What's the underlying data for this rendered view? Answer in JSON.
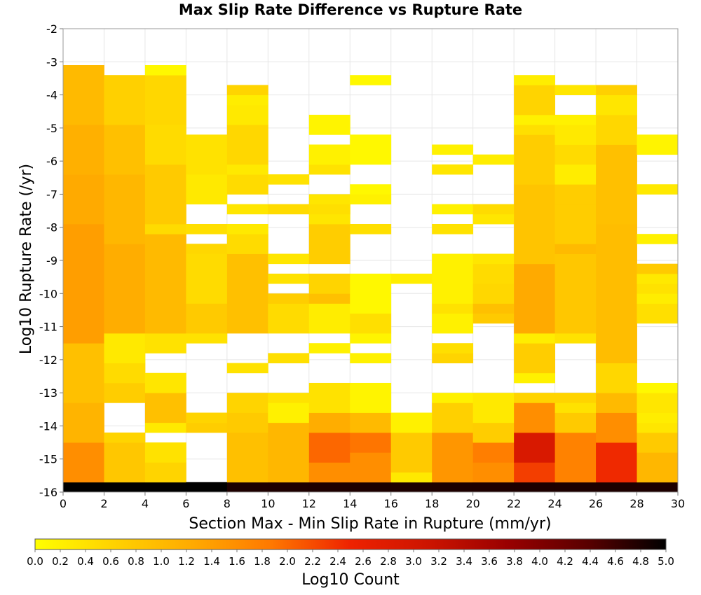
{
  "chart_data": {
    "type": "heatmap",
    "title": "Max Slip Rate Difference vs Rupture Rate",
    "xlabel": "Section Max - Min Slip Rate in Rupture (mm/yr)",
    "ylabel": "Log10 Rupture Rate (/yr)",
    "colorbar_label": "Log10 Count",
    "xlim": [
      0,
      30
    ],
    "ylim": [
      -16,
      -2
    ],
    "x_ticks": [
      "0",
      "2",
      "4",
      "6",
      "8",
      "10",
      "12",
      "14",
      "16",
      "18",
      "20",
      "22",
      "24",
      "26",
      "28",
      "30"
    ],
    "y_ticks": [
      "-2",
      "-3",
      "-4",
      "-5",
      "-6",
      "-7",
      "-8",
      "-9",
      "-10",
      "-11",
      "-12",
      "-13",
      "-14",
      "-15",
      "-16"
    ],
    "colorbar_range": [
      0,
      5
    ],
    "colorbar_ticks": [
      "0.0",
      "0.2",
      "0.4",
      "0.6",
      "0.8",
      "1.0",
      "1.2",
      "1.4",
      "1.6",
      "1.8",
      "2.0",
      "2.2",
      "2.4",
      "2.6",
      "2.8",
      "3.0",
      "3.2",
      "3.4",
      "3.6",
      "3.8",
      "4.0",
      "4.2",
      "4.4",
      "4.6",
      "4.8",
      "5.0"
    ],
    "colorscale": [
      "#ffff00",
      "#ffd200",
      "#ffaa00",
      "#ff7800",
      "#ee2200",
      "#cc1400",
      "#990000",
      "#5a0000",
      "#000000"
    ],
    "x_bin_width": 2,
    "y_bin_height": 0.3,
    "y_bin_start": -16,
    "grid": true,
    "legend": "bottom",
    "columns": [
      {
        "x0": 0,
        "runs": [
          {
            "y0": -16.0,
            "n": 1,
            "v": 5.0
          },
          {
            "y0": -15.7,
            "n": 4,
            "v": 1.6
          },
          {
            "y0": -14.5,
            "n": 4,
            "v": 1.1
          },
          {
            "y0": -13.3,
            "n": 6,
            "v": 0.9
          },
          {
            "y0": -11.5,
            "n": 12,
            "v": 1.4
          },
          {
            "y0": -7.9,
            "n": 5,
            "v": 1.25
          },
          {
            "y0": -6.4,
            "n": 5,
            "v": 1.15
          },
          {
            "y0": -4.9,
            "n": 6,
            "v": 1.0
          }
        ]
      },
      {
        "x0": 2,
        "runs": [
          {
            "y0": -16.0,
            "n": 1,
            "v": 5.0
          },
          {
            "y0": -15.7,
            "n": 4,
            "v": 0.8
          },
          {
            "y0": -14.5,
            "n": 1,
            "v": 0.6
          },
          {
            "y0": -13.3,
            "n": 2,
            "v": 0.7
          },
          {
            "y0": -12.7,
            "n": 2,
            "v": 0.5
          },
          {
            "y0": -12.1,
            "n": 3,
            "v": 0.3
          },
          {
            "y0": -11.2,
            "n": 9,
            "v": 1.2
          },
          {
            "y0": -8.5,
            "n": 7,
            "v": 1.05
          },
          {
            "y0": -6.4,
            "n": 5,
            "v": 0.9
          },
          {
            "y0": -4.9,
            "n": 5,
            "v": 0.65
          }
        ]
      },
      {
        "x0": 4,
        "runs": [
          {
            "y0": -16.0,
            "n": 1,
            "v": 5.0
          },
          {
            "y0": -15.7,
            "n": 2,
            "v": 0.6
          },
          {
            "y0": -15.1,
            "n": 2,
            "v": 0.4
          },
          {
            "y0": -14.2,
            "n": 1,
            "v": 0.3
          },
          {
            "y0": -13.9,
            "n": 3,
            "v": 0.9
          },
          {
            "y0": -13.0,
            "n": 2,
            "v": 0.35
          },
          {
            "y0": -11.8,
            "n": 2,
            "v": 0.4
          },
          {
            "y0": -11.2,
            "n": 10,
            "v": 1.0
          },
          {
            "y0": -8.2,
            "n": 1,
            "v": 0.5
          },
          {
            "y0": -7.9,
            "n": 6,
            "v": 0.75
          },
          {
            "y0": -6.1,
            "n": 4,
            "v": 0.5
          },
          {
            "y0": -4.9,
            "n": 5,
            "v": 0.55
          },
          {
            "y0": -3.4,
            "n": 1,
            "v": 0.1
          }
        ]
      },
      {
        "x0": 6,
        "runs": [
          {
            "y0": -16.0,
            "n": 1,
            "v": 5.0
          },
          {
            "y0": -14.2,
            "n": 1,
            "v": 0.7
          },
          {
            "y0": -13.9,
            "n": 1,
            "v": 0.6
          },
          {
            "y0": -11.5,
            "n": 1,
            "v": 0.4
          },
          {
            "y0": -11.2,
            "n": 3,
            "v": 0.75
          },
          {
            "y0": -10.3,
            "n": 6,
            "v": 0.5
          },
          {
            "y0": -8.8,
            "n": 1,
            "v": 0.55
          },
          {
            "y0": -8.2,
            "n": 1,
            "v": 0.45
          },
          {
            "y0": -7.3,
            "n": 4,
            "v": 0.3
          },
          {
            "y0": -6.4,
            "n": 4,
            "v": 0.4
          }
        ]
      },
      {
        "x0": 8,
        "runs": [
          {
            "y0": -16.0,
            "n": 1,
            "v": 4.8
          },
          {
            "y0": -15.7,
            "n": 5,
            "v": 0.9
          },
          {
            "y0": -14.2,
            "n": 2,
            "v": 0.75
          },
          {
            "y0": -13.6,
            "n": 2,
            "v": 0.6
          },
          {
            "y0": -12.4,
            "n": 1,
            "v": 0.4
          },
          {
            "y0": -11.2,
            "n": 8,
            "v": 0.9
          },
          {
            "y0": -8.8,
            "n": 2,
            "v": 0.5
          },
          {
            "y0": -8.2,
            "n": 1,
            "v": 0.3
          },
          {
            "y0": -7.6,
            "n": 1,
            "v": 0.35
          },
          {
            "y0": -7.0,
            "n": 2,
            "v": 0.5
          },
          {
            "y0": -6.4,
            "n": 1,
            "v": 0.3
          },
          {
            "y0": -6.1,
            "n": 4,
            "v": 0.55
          },
          {
            "y0": -4.9,
            "n": 2,
            "v": 0.3
          },
          {
            "y0": -4.3,
            "n": 1,
            "v": 0.25
          },
          {
            "y0": -4.0,
            "n": 1,
            "v": 0.6
          }
        ]
      },
      {
        "x0": 10,
        "runs": [
          {
            "y0": -16.0,
            "n": 1,
            "v": 4.8
          },
          {
            "y0": -15.7,
            "n": 6,
            "v": 1.05
          },
          {
            "y0": -13.9,
            "n": 2,
            "v": 0.2
          },
          {
            "y0": -13.3,
            "n": 1,
            "v": 0.4
          },
          {
            "y0": -12.1,
            "n": 1,
            "v": 0.45
          },
          {
            "y0": -11.2,
            "n": 3,
            "v": 0.5
          },
          {
            "y0": -10.3,
            "n": 1,
            "v": 0.7
          },
          {
            "y0": -9.7,
            "n": 1,
            "v": 0.4
          },
          {
            "y0": -9.1,
            "n": 1,
            "v": 0.35
          },
          {
            "y0": -7.6,
            "n": 1,
            "v": 0.5
          },
          {
            "y0": -6.7,
            "n": 1,
            "v": 0.4
          }
        ]
      },
      {
        "x0": 12,
        "runs": [
          {
            "y0": -16.0,
            "n": 1,
            "v": 4.8
          },
          {
            "y0": -15.7,
            "n": 2,
            "v": 1.6
          },
          {
            "y0": -15.1,
            "n": 3,
            "v": 2.0
          },
          {
            "y0": -14.2,
            "n": 2,
            "v": 1.2
          },
          {
            "y0": -13.6,
            "n": 3,
            "v": 0.4
          },
          {
            "y0": -11.8,
            "n": 1,
            "v": 0.2
          },
          {
            "y0": -11.2,
            "n": 3,
            "v": 0.25
          },
          {
            "y0": -10.3,
            "n": 1,
            "v": 0.9
          },
          {
            "y0": -10.0,
            "n": 2,
            "v": 0.6
          },
          {
            "y0": -9.1,
            "n": 4,
            "v": 0.7
          },
          {
            "y0": -7.9,
            "n": 3,
            "v": 0.35
          },
          {
            "y0": -7.6,
            "n": 1,
            "v": 0.45
          },
          {
            "y0": -6.4,
            "n": 1,
            "v": 0.4
          },
          {
            "y0": -6.1,
            "n": 2,
            "v": 0.2
          },
          {
            "y0": -5.2,
            "n": 2,
            "v": 0.15
          }
        ]
      },
      {
        "x0": 14,
        "runs": [
          {
            "y0": -16.0,
            "n": 1,
            "v": 4.8
          },
          {
            "y0": -15.7,
            "n": 3,
            "v": 1.6
          },
          {
            "y0": -14.8,
            "n": 2,
            "v": 1.9
          },
          {
            "y0": -14.2,
            "n": 2,
            "v": 1.0
          },
          {
            "y0": -13.6,
            "n": 3,
            "v": 0.15
          },
          {
            "y0": -12.1,
            "n": 1,
            "v": 0.2
          },
          {
            "y0": -11.5,
            "n": 1,
            "v": 0.15
          },
          {
            "y0": -11.2,
            "n": 2,
            "v": 0.45
          },
          {
            "y0": -10.6,
            "n": 4,
            "v": 0.1
          },
          {
            "y0": -8.2,
            "n": 1,
            "v": 0.45
          },
          {
            "y0": -7.3,
            "n": 1,
            "v": 0.2
          },
          {
            "y0": -7.0,
            "n": 1,
            "v": 0.1
          },
          {
            "y0": -6.1,
            "n": 3,
            "v": 0.1
          },
          {
            "y0": -3.7,
            "n": 1,
            "v": 0.1
          }
        ]
      },
      {
        "x0": 16,
        "runs": [
          {
            "y0": -16.0,
            "n": 1,
            "v": 4.8
          },
          {
            "y0": -15.7,
            "n": 1,
            "v": 0.3
          },
          {
            "y0": -15.4,
            "n": 4,
            "v": 0.75
          },
          {
            "y0": -14.2,
            "n": 2,
            "v": 0.2
          },
          {
            "y0": -9.7,
            "n": 1,
            "v": 0.25
          }
        ]
      },
      {
        "x0": 18,
        "runs": [
          {
            "y0": -16.0,
            "n": 1,
            "v": 4.8
          },
          {
            "y0": -15.7,
            "n": 5,
            "v": 1.5
          },
          {
            "y0": -14.2,
            "n": 3,
            "v": 0.65
          },
          {
            "y0": -13.3,
            "n": 1,
            "v": 0.2
          },
          {
            "y0": -12.1,
            "n": 1,
            "v": 0.6
          },
          {
            "y0": -11.8,
            "n": 1,
            "v": 0.45
          },
          {
            "y0": -11.2,
            "n": 2,
            "v": 0.2
          },
          {
            "y0": -10.6,
            "n": 1,
            "v": 0.4
          },
          {
            "y0": -10.3,
            "n": 5,
            "v": 0.2
          },
          {
            "y0": -8.2,
            "n": 1,
            "v": 0.4
          },
          {
            "y0": -7.6,
            "n": 1,
            "v": 0.2
          },
          {
            "y0": -6.4,
            "n": 1,
            "v": 0.35
          },
          {
            "y0": -5.8,
            "n": 1,
            "v": 0.2
          }
        ]
      },
      {
        "x0": 20,
        "runs": [
          {
            "y0": -16.0,
            "n": 1,
            "v": 4.8
          },
          {
            "y0": -15.7,
            "n": 2,
            "v": 1.6
          },
          {
            "y0": -15.1,
            "n": 2,
            "v": 1.8
          },
          {
            "y0": -14.5,
            "n": 2,
            "v": 0.7
          },
          {
            "y0": -13.9,
            "n": 3,
            "v": 0.3
          },
          {
            "y0": -10.9,
            "n": 1,
            "v": 0.75
          },
          {
            "y0": -10.6,
            "n": 1,
            "v": 0.9
          },
          {
            "y0": -10.3,
            "n": 2,
            "v": 0.55
          },
          {
            "y0": -9.7,
            "n": 2,
            "v": 0.5
          },
          {
            "y0": -9.1,
            "n": 1,
            "v": 0.35
          },
          {
            "y0": -7.9,
            "n": 1,
            "v": 0.35
          },
          {
            "y0": -7.6,
            "n": 1,
            "v": 0.5
          },
          {
            "y0": -6.1,
            "n": 1,
            "v": 0.25
          }
        ]
      },
      {
        "x0": 22,
        "runs": [
          {
            "y0": -16.0,
            "n": 1,
            "v": 4.8
          },
          {
            "y0": -15.7,
            "n": 2,
            "v": 2.3
          },
          {
            "y0": -15.1,
            "n": 3,
            "v": 2.9
          },
          {
            "y0": -14.2,
            "n": 3,
            "v": 1.6
          },
          {
            "y0": -13.3,
            "n": 1,
            "v": 0.6
          },
          {
            "y0": -12.7,
            "n": 1,
            "v": 0.2
          },
          {
            "y0": -12.4,
            "n": 3,
            "v": 0.7
          },
          {
            "y0": -11.5,
            "n": 1,
            "v": 0.25
          },
          {
            "y0": -11.2,
            "n": 7,
            "v": 1.25
          },
          {
            "y0": -9.1,
            "n": 8,
            "v": 0.85
          },
          {
            "y0": -6.7,
            "n": 5,
            "v": 0.7
          },
          {
            "y0": -5.2,
            "n": 1,
            "v": 0.45
          },
          {
            "y0": -4.9,
            "n": 1,
            "v": 0.2
          },
          {
            "y0": -4.6,
            "n": 3,
            "v": 0.6
          },
          {
            "y0": -3.7,
            "n": 1,
            "v": 0.25
          }
        ]
      },
      {
        "x0": 24,
        "runs": [
          {
            "y0": -16.0,
            "n": 1,
            "v": 4.8
          },
          {
            "y0": -15.7,
            "n": 5,
            "v": 1.75
          },
          {
            "y0": -14.2,
            "n": 2,
            "v": 0.75
          },
          {
            "y0": -13.6,
            "n": 1,
            "v": 0.4
          },
          {
            "y0": -13.3,
            "n": 1,
            "v": 0.6
          },
          {
            "y0": -11.5,
            "n": 1,
            "v": 0.4
          },
          {
            "y0": -11.2,
            "n": 8,
            "v": 0.8
          },
          {
            "y0": -8.8,
            "n": 1,
            "v": 1.0
          },
          {
            "y0": -8.5,
            "n": 4,
            "v": 0.7
          },
          {
            "y0": -7.3,
            "n": 2,
            "v": 0.7
          },
          {
            "y0": -6.7,
            "n": 2,
            "v": 0.25
          },
          {
            "y0": -6.1,
            "n": 2,
            "v": 0.5
          },
          {
            "y0": -5.5,
            "n": 2,
            "v": 0.3
          },
          {
            "y0": -4.9,
            "n": 1,
            "v": 0.2
          },
          {
            "y0": -4.0,
            "n": 1,
            "v": 0.35
          }
        ]
      },
      {
        "x0": 26,
        "runs": [
          {
            "y0": -16.0,
            "n": 1,
            "v": 4.8
          },
          {
            "y0": -15.7,
            "n": 4,
            "v": 2.45
          },
          {
            "y0": -14.5,
            "n": 3,
            "v": 1.6
          },
          {
            "y0": -13.6,
            "n": 2,
            "v": 1.0
          },
          {
            "y0": -13.0,
            "n": 3,
            "v": 0.55
          },
          {
            "y0": -12.1,
            "n": 14,
            "v": 0.95
          },
          {
            "y0": -7.9,
            "n": 8,
            "v": 0.9
          },
          {
            "y0": -5.5,
            "n": 3,
            "v": 0.55
          },
          {
            "y0": -4.6,
            "n": 2,
            "v": 0.35
          },
          {
            "y0": -4.0,
            "n": 1,
            "v": 0.65
          }
        ]
      },
      {
        "x0": 28,
        "runs": [
          {
            "y0": -16.0,
            "n": 1,
            "v": 4.8
          },
          {
            "y0": -15.7,
            "n": 3,
            "v": 1.05
          },
          {
            "y0": -14.8,
            "n": 2,
            "v": 0.75
          },
          {
            "y0": -14.2,
            "n": 1,
            "v": 0.35
          },
          {
            "y0": -13.9,
            "n": 1,
            "v": 0.25
          },
          {
            "y0": -13.6,
            "n": 2,
            "v": 0.35
          },
          {
            "y0": -13.0,
            "n": 1,
            "v": 0.1
          },
          {
            "y0": -10.9,
            "n": 2,
            "v": 0.45
          },
          {
            "y0": -10.3,
            "n": 1,
            "v": 0.25
          },
          {
            "y0": -10.0,
            "n": 1,
            "v": 0.4
          },
          {
            "y0": -9.7,
            "n": 1,
            "v": 0.3
          },
          {
            "y0": -9.4,
            "n": 1,
            "v": 0.75
          },
          {
            "y0": -8.5,
            "n": 1,
            "v": 0.2
          },
          {
            "y0": -7.0,
            "n": 1,
            "v": 0.3
          },
          {
            "y0": -5.8,
            "n": 2,
            "v": 0.15
          }
        ]
      }
    ]
  }
}
